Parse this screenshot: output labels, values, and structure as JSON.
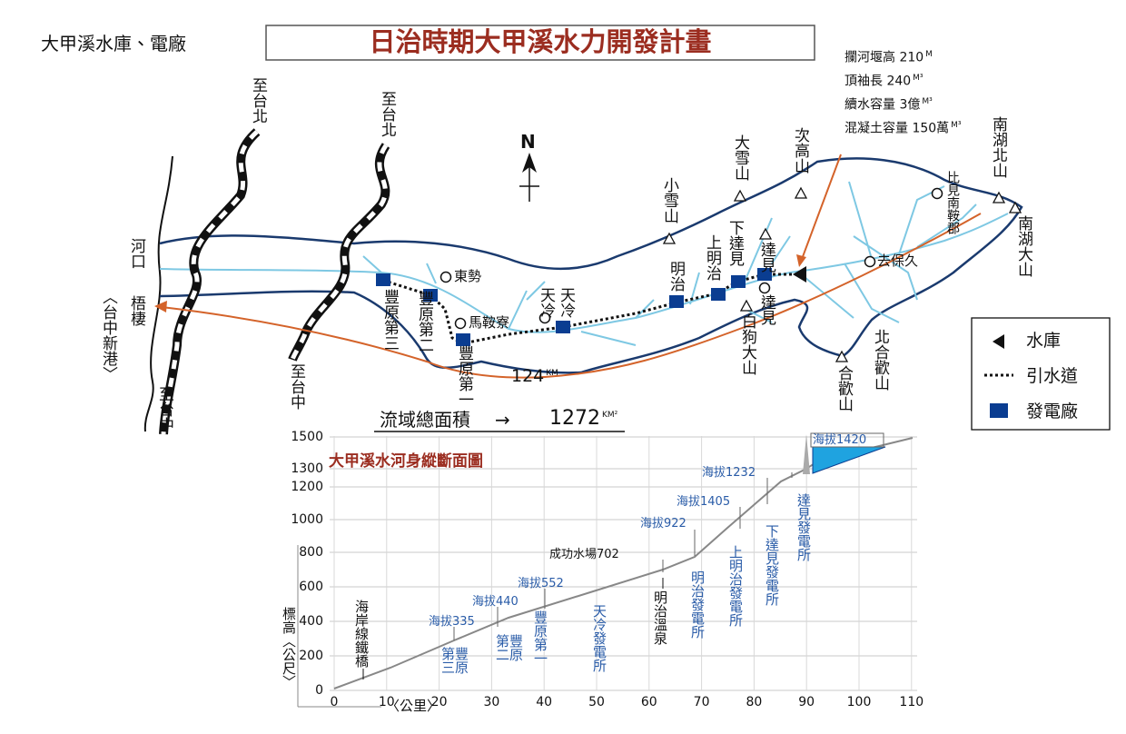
{
  "header": {
    "caption": "大甲溪水庫、電廠",
    "title": "日治時期大甲溪水力開發計畫"
  },
  "dam_specs": [
    {
      "text": "攔河堰高 210",
      "unit": "M"
    },
    {
      "text": "頂袖長 240",
      "unit": "M³"
    },
    {
      "text": "續水容量 3億",
      "unit": "M³"
    },
    {
      "text": "混凝土容量 150萬",
      "unit": "M³"
    }
  ],
  "map": {
    "north": "N",
    "labels": [
      "至台北",
      "至台北",
      "河口",
      "梧棲",
      "〈台中新港〉",
      "至台中",
      "至台中",
      "豐原第三",
      "豐原第二",
      "豐原第一",
      "東勢",
      "馬鞍寮",
      "天冷",
      "天冷",
      "明治",
      "上明治",
      "下達見",
      "達見",
      "達見",
      "白狗大山",
      "小雪山",
      "大雪山",
      "次高山",
      "去保久",
      "比見南鞍郡",
      "南湖北山",
      "南湖大山",
      "北合歡山",
      "合歡山"
    ],
    "river_length": {
      "text": "124",
      "unit": "KM"
    },
    "area": {
      "label": "流域總面積",
      "arrow": "→",
      "text": "1272",
      "unit": "KM²"
    }
  },
  "legend": [
    "水庫",
    "引水道",
    "發電廠"
  ],
  "profile": {
    "title": "大甲溪水河身縱斷面圖",
    "y_label": "標高〈公尺〉",
    "x_label": "〈公里〉",
    "yticks": [
      0,
      200,
      400,
      600,
      800,
      1000,
      1200,
      1300,
      1500
    ],
    "xticks": [
      0,
      10,
      20,
      30,
      40,
      50,
      60,
      70,
      80,
      90,
      100,
      110
    ],
    "labels": [
      "海拔335",
      "海拔440",
      "海拔552",
      "成功水場702",
      "海拔922",
      "海拔1405",
      "海拔1232",
      "海拔1420",
      "豐原第三",
      "豐原第二",
      "豐原第一",
      "天冷發電所",
      "明治溫泉",
      "明治發電所",
      "上明治發電所",
      "下達見發電所",
      "達見發電所",
      "海岸線鐵橋"
    ]
  }
}
